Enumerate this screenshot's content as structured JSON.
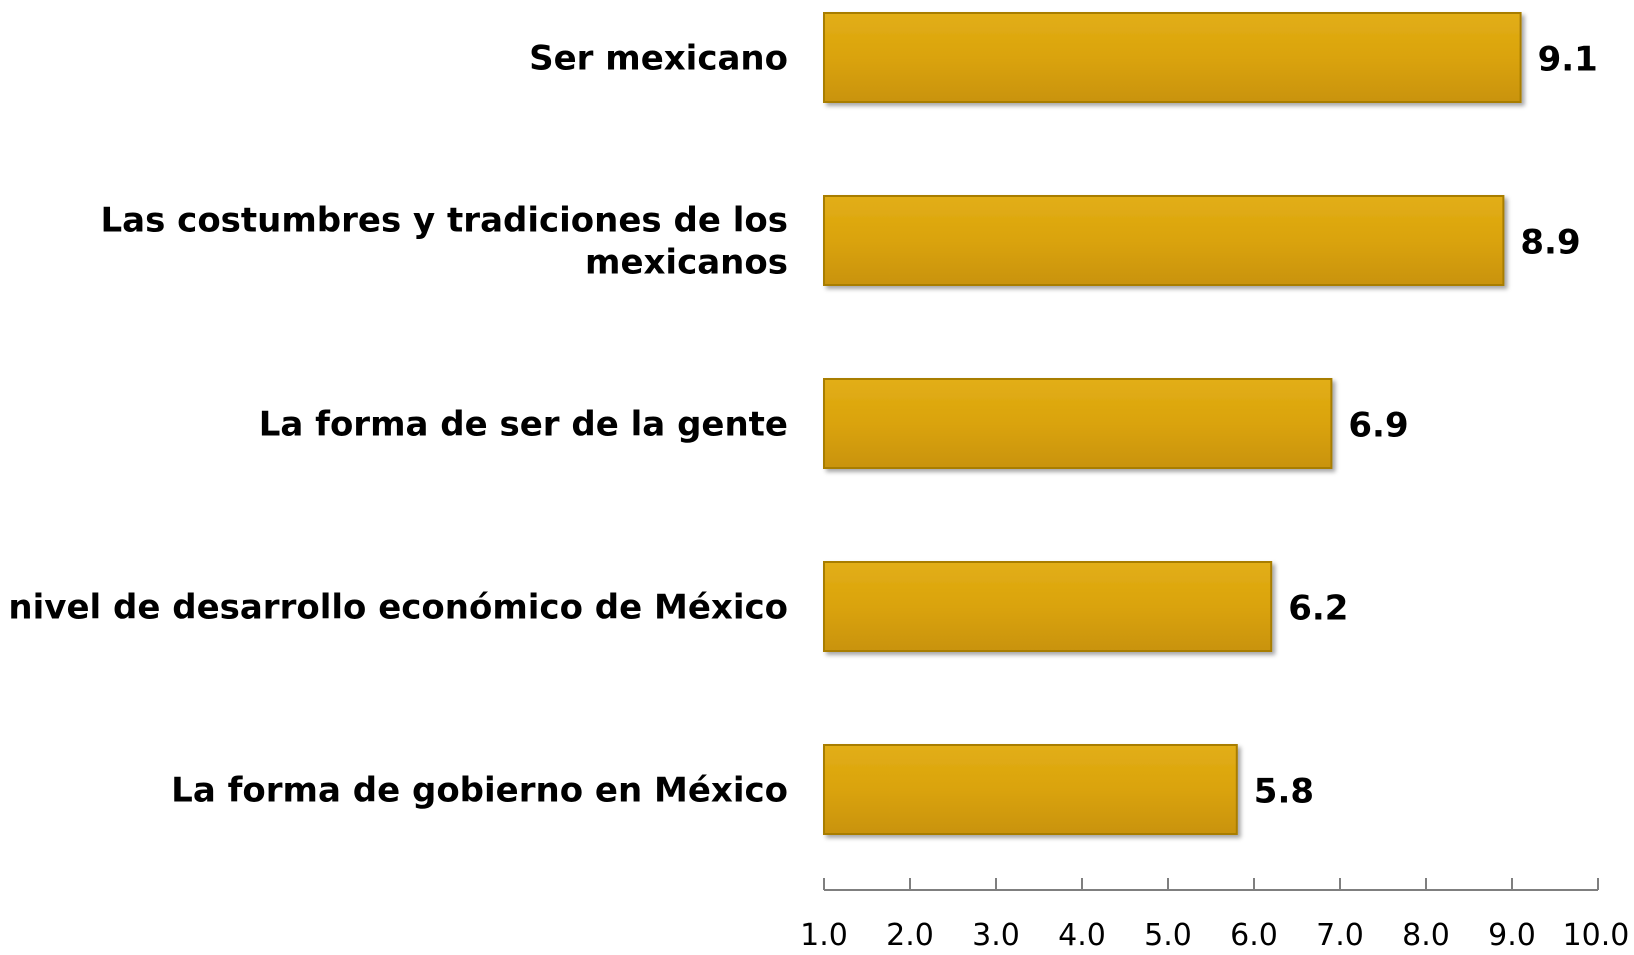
{
  "chart_data": {
    "type": "bar",
    "orientation": "horizontal",
    "categories": [
      [
        "Ser mexicano"
      ],
      [
        "Las costumbres y tradiciones de los",
        "mexicanos"
      ],
      [
        "La forma de ser de la gente"
      ],
      [
        "El nivel de desarrollo económico de México"
      ],
      [
        "La forma de gobierno en México"
      ]
    ],
    "values": [
      9.1,
      8.9,
      6.9,
      6.2,
      5.8
    ],
    "value_labels": [
      "9.1",
      "8.9",
      "6.9",
      "6.2",
      "5.8"
    ],
    "xlim": [
      1.0,
      10.0
    ],
    "ticks": [
      1.0,
      2.0,
      3.0,
      4.0,
      5.0,
      6.0,
      7.0,
      8.0,
      9.0,
      10.0
    ],
    "tick_labels": [
      "1.0",
      "2.0",
      "3.0",
      "4.0",
      "5.0",
      "6.0",
      "7.0",
      "8.0",
      "9.0",
      "10.0"
    ],
    "grid": false,
    "legend": "none",
    "colors": {
      "bar_fill": "#DAA30C",
      "bar_edge": "#A87D05",
      "axis": "#7f7f7f"
    }
  }
}
